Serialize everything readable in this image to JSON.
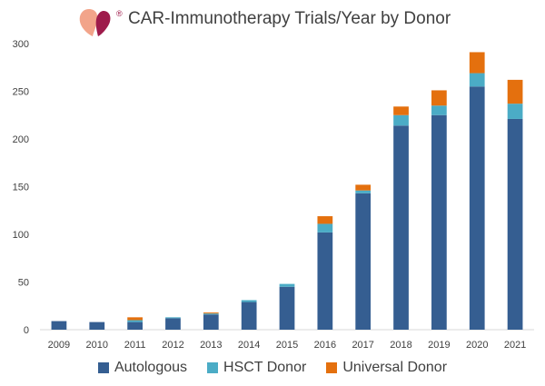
{
  "title": "CAR-Immunotherapy Trials/Year by Donor",
  "logo": {
    "mark": "®",
    "icon": "heart-drops-icon"
  },
  "colors": {
    "autologous": "#355E91",
    "hsct": "#4BACC6",
    "universal": "#E4700E",
    "axis": "#D9D9D9",
    "text": "#404040"
  },
  "chart_data": {
    "type": "bar",
    "stacked": true,
    "title": "CAR-Immunotherapy Trials/Year by Donor",
    "categories": [
      "2009",
      "2010",
      "2011",
      "2012",
      "2013",
      "2014",
      "2015",
      "2016",
      "2017",
      "2018",
      "2019",
      "2020",
      "2021"
    ],
    "series": [
      {
        "name": "Autologous",
        "color": "#355E91",
        "values": [
          9,
          8,
          8,
          12,
          16,
          29,
          45,
          102,
          143,
          214,
          225,
          255,
          221
        ]
      },
      {
        "name": "HSCT Donor",
        "color": "#4BACC6",
        "values": [
          0,
          0,
          2,
          1,
          1,
          2,
          3,
          9,
          3,
          11,
          10,
          14,
          16
        ]
      },
      {
        "name": "Universal Donor",
        "color": "#E4700E",
        "values": [
          0,
          0,
          3,
          0,
          1,
          0,
          0,
          8,
          6,
          9,
          16,
          22,
          25
        ]
      }
    ],
    "ylim": [
      0,
      300
    ],
    "yticks": [
      0,
      50,
      100,
      150,
      200,
      250,
      300
    ],
    "ytick_labels": [
      "0",
      "50",
      "100",
      "150",
      "200",
      "250",
      "300"
    ],
    "xlabel": "",
    "ylabel": "",
    "grid": false,
    "legend_position": "bottom"
  }
}
